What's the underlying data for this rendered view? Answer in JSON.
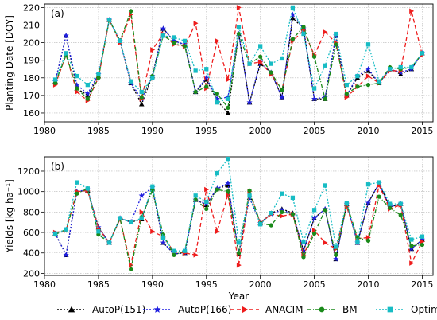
{
  "chart_data": [
    {
      "type": "line",
      "panel_label": "(a)",
      "xlabel": "",
      "ylabel": "Planting Date [DOY]",
      "xlim": [
        1980,
        2016
      ],
      "ylim": [
        155,
        222
      ],
      "xticks": [
        1980,
        1985,
        1990,
        1995,
        2000,
        2005,
        2010,
        2015
      ],
      "yticks": [
        160,
        170,
        180,
        190,
        200,
        210,
        220
      ],
      "x": [
        1981,
        1982,
        1983,
        1984,
        1985,
        1986,
        1987,
        1988,
        1989,
        1990,
        1991,
        1992,
        1993,
        1994,
        1995,
        1996,
        1997,
        1998,
        1999,
        2000,
        2001,
        2002,
        2003,
        2004,
        2005,
        2006,
        2007,
        2008,
        2009,
        2010,
        2011,
        2012,
        2013,
        2014,
        2015
      ],
      "series": [
        {
          "name": "AutoP(151)",
          "values": [
            178,
            204,
            174,
            170,
            181,
            213,
            201,
            177,
            165,
            181,
            208,
            201,
            199,
            172,
            179,
            167,
            160,
            205,
            166,
            188,
            183,
            169,
            214,
            208,
            168,
            168,
            204,
            170,
            180,
            184,
            177,
            185,
            182,
            185,
            194
          ]
        },
        {
          "name": "AutoP(166)",
          "values": [
            178,
            204,
            176,
            171,
            182,
            213,
            201,
            177,
            168,
            181,
            208,
            201,
            199,
            172,
            180,
            168,
            169,
            205,
            166,
            189,
            183,
            169,
            216,
            208,
            168,
            169,
            204,
            170,
            181,
            185,
            177,
            185,
            183,
            185,
            194
          ]
        },
        {
          "name": "ANACIM",
          "values": [
            176,
            193,
            172,
            167,
            180,
            213,
            200,
            216,
            168,
            196,
            205,
            199,
            198,
            211,
            174,
            201,
            179,
            220,
            188,
            189,
            182,
            173,
            201,
            207,
            193,
            206,
            200,
            169,
            175,
            181,
            177,
            184,
            184,
            218,
            193
          ]
        },
        {
          "name": "BM",
          "values": [
            177,
            193,
            174,
            168,
            180,
            213,
            201,
            218,
            169,
            181,
            204,
            200,
            198,
            172,
            175,
            171,
            163,
            205,
            188,
            192,
            183,
            173,
            202,
            209,
            192,
            168,
            199,
            171,
            175,
            176,
            177,
            186,
            185,
            186,
            194
          ]
        },
        {
          "name": "Optimal",
          "values": [
            179,
            194,
            181,
            176,
            182,
            213,
            201,
            178,
            172,
            180,
            204,
            203,
            201,
            184,
            185,
            166,
            168,
            209,
            188,
            198,
            188,
            191,
            220,
            205,
            174,
            187,
            205,
            176,
            181,
            199,
            178,
            185,
            186,
            186,
            194
          ]
        }
      ]
    },
    {
      "type": "line",
      "panel_label": "(b)",
      "xlabel": "Year",
      "ylabel": "Yields [kg ha⁻¹]",
      "xlim": [
        1980,
        2016
      ],
      "ylim": [
        180,
        1340
      ],
      "xticks": [
        1980,
        1985,
        1990,
        1995,
        2000,
        2005,
        2010,
        2015
      ],
      "yticks": [
        200,
        400,
        600,
        800,
        1000,
        1200
      ],
      "x": [
        1981,
        1982,
        1983,
        1984,
        1985,
        1986,
        1987,
        1988,
        1989,
        1990,
        1991,
        1992,
        1993,
        1994,
        1995,
        1996,
        1997,
        1998,
        1999,
        2000,
        2001,
        2002,
        2003,
        2004,
        2005,
        2006,
        2007,
        2008,
        2009,
        2010,
        2011,
        2012,
        2013,
        2014,
        2015
      ],
      "series": [
        {
          "name": "AutoP(151)",
          "values": [
            590,
            380,
            1000,
            1010,
            650,
            500,
            740,
            700,
            730,
            1030,
            500,
            390,
            400,
            920,
            870,
            1030,
            1060,
            390,
            940,
            690,
            790,
            830,
            790,
            420,
            740,
            830,
            340,
            880,
            500,
            890,
            1080,
            850,
            880,
            440,
            530
          ]
        },
        {
          "name": "AutoP(166)",
          "values": [
            590,
            380,
            1000,
            1020,
            650,
            500,
            740,
            700,
            960,
            1040,
            500,
            390,
            400,
            920,
            880,
            1030,
            1080,
            400,
            940,
            690,
            780,
            820,
            780,
            420,
            740,
            830,
            340,
            880,
            500,
            890,
            1080,
            850,
            880,
            440,
            530
          ]
        },
        {
          "name": "ANACIM",
          "values": [
            600,
            620,
            1000,
            1010,
            640,
            500,
            730,
            280,
            800,
            610,
            560,
            410,
            400,
            380,
            1020,
            610,
            970,
            280,
            1000,
            690,
            780,
            760,
            780,
            380,
            620,
            500,
            440,
            850,
            540,
            550,
            1060,
            830,
            870,
            300,
            510
          ]
        },
        {
          "name": "BM",
          "values": [
            580,
            630,
            980,
            1030,
            580,
            500,
            740,
            240,
            750,
            1010,
            580,
            380,
            420,
            920,
            830,
            1020,
            1000,
            400,
            1010,
            690,
            670,
            800,
            780,
            360,
            590,
            820,
            380,
            880,
            550,
            520,
            950,
            840,
            770,
            470,
            480
          ]
        },
        {
          "name": "Optimal",
          "values": [
            590,
            630,
            1090,
            1030,
            610,
            500,
            740,
            700,
            740,
            1050,
            550,
            420,
            420,
            960,
            900,
            1180,
            1320,
            500,
            960,
            680,
            790,
            980,
            940,
            510,
            820,
            1060,
            460,
            890,
            510,
            1070,
            1090,
            880,
            880,
            530,
            560
          ]
        }
      ]
    }
  ],
  "legend": {
    "position": "bottom",
    "entries": [
      {
        "name": "AutoP(151)",
        "color": "#000000",
        "marker": "triangle",
        "dash": "2,2"
      },
      {
        "name": "AutoP(166)",
        "color": "#1f1fe0",
        "marker": "star",
        "dash": "2,2"
      },
      {
        "name": "ANACIM",
        "color": "#ee1c1c",
        "marker": "triangle-right",
        "dash": "5,3"
      },
      {
        "name": "BM",
        "color": "#1a8a1a",
        "marker": "circle",
        "dash": "5,2,1,2"
      },
      {
        "name": "Optimal",
        "color": "#17bcc4",
        "marker": "square",
        "dash": "2,2"
      }
    ]
  }
}
